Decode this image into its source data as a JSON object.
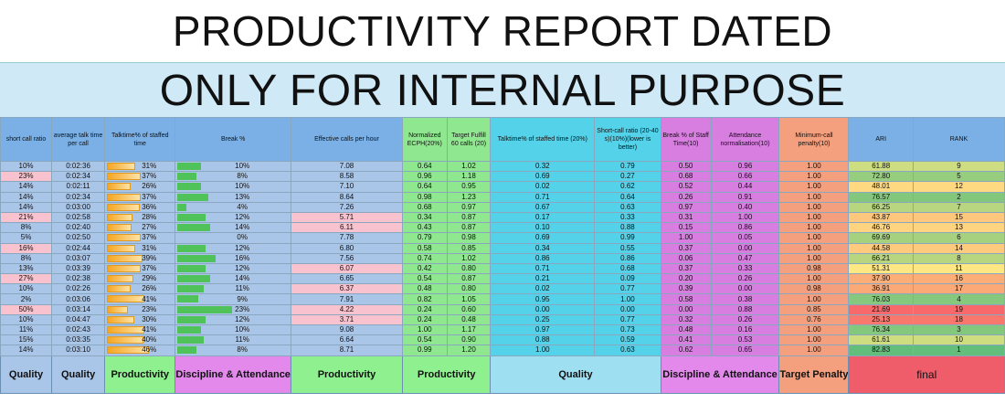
{
  "title_line1": "PRODUCTIVITY REPORT DATED",
  "title_line2": "ONLY FOR INTERNAL PURPOSE",
  "headers": [
    "short call ratio",
    "average talk time per call",
    "Talktime% of staffed time",
    "Break %",
    "Effective calls per hour",
    "Normalized ECPH(20%)",
    "Target Fulfill 60 calls (20)",
    "Talktime% of staffed time (20%)",
    "Short-call ratio (20-40 s)(10%)(lower is better)",
    "Break % of Staff Time(10)",
    "Attendance normalisation(10)",
    "Minimum-call penalty(10)",
    "ARI",
    "RANK"
  ],
  "rows": [
    {
      "short": "10%",
      "att": "0:02:36",
      "tt": "31%",
      "tt_v": 0.31,
      "brk": "10%",
      "brk_v": 0.1,
      "ecph": "7.08",
      "necph": "0.64",
      "tf": "1.02",
      "tn": "0.32",
      "sn": "0.79",
      "bn": "0.50",
      "an": "0.96",
      "mp": "1.00",
      "ari": "61.88",
      "rank": "9",
      "hl_short": false,
      "hl_ecph": false
    },
    {
      "short": "23%",
      "att": "0:02:34",
      "tt": "37%",
      "tt_v": 0.37,
      "brk": "8%",
      "brk_v": 0.08,
      "ecph": "8.58",
      "necph": "0.96",
      "tf": "1.18",
      "tn": "0.69",
      "sn": "0.27",
      "bn": "0.68",
      "an": "0.66",
      "mp": "1.00",
      "ari": "72.80",
      "rank": "5",
      "hl_short": true,
      "hl_ecph": false
    },
    {
      "short": "14%",
      "att": "0:02:11",
      "tt": "26%",
      "tt_v": 0.26,
      "brk": "10%",
      "brk_v": 0.1,
      "ecph": "7.10",
      "necph": "0.64",
      "tf": "0.95",
      "tn": "0.02",
      "sn": "0.62",
      "bn": "0.52",
      "an": "0.44",
      "mp": "1.00",
      "ari": "48.01",
      "rank": "12",
      "hl_short": false,
      "hl_ecph": false
    },
    {
      "short": "14%",
      "att": "0:02:34",
      "tt": "37%",
      "tt_v": 0.37,
      "brk": "13%",
      "brk_v": 0.13,
      "ecph": "8.64",
      "necph": "0.98",
      "tf": "1.23",
      "tn": "0.71",
      "sn": "0.64",
      "bn": "0.26",
      "an": "0.91",
      "mp": "1.00",
      "ari": "76.57",
      "rank": "2",
      "hl_short": false,
      "hl_ecph": false
    },
    {
      "short": "14%",
      "att": "0:03:00",
      "tt": "36%",
      "tt_v": 0.36,
      "brk": "4%",
      "brk_v": 0.04,
      "ecph": "7.26",
      "necph": "0.68",
      "tf": "0.97",
      "tn": "0.67",
      "sn": "0.63",
      "bn": "0.97",
      "an": "0.40",
      "mp": "1.00",
      "ari": "66.25",
      "rank": "7",
      "hl_short": false,
      "hl_ecph": false
    },
    {
      "short": "21%",
      "att": "0:02:58",
      "tt": "28%",
      "tt_v": 0.28,
      "brk": "12%",
      "brk_v": 0.12,
      "ecph": "5.71",
      "necph": "0.34",
      "tf": "0.87",
      "tn": "0.17",
      "sn": "0.33",
      "bn": "0.31",
      "an": "1.00",
      "mp": "1.00",
      "ari": "43.87",
      "rank": "15",
      "hl_short": true,
      "hl_ecph": true
    },
    {
      "short": "8%",
      "att": "0:02:40",
      "tt": "27%",
      "tt_v": 0.27,
      "brk": "14%",
      "brk_v": 0.14,
      "ecph": "6.11",
      "necph": "0.43",
      "tf": "0.87",
      "tn": "0.10",
      "sn": "0.88",
      "bn": "0.15",
      "an": "0.86",
      "mp": "1.00",
      "ari": "46.76",
      "rank": "13",
      "hl_short": false,
      "hl_ecph": true
    },
    {
      "short": "5%",
      "att": "0:02:50",
      "tt": "37%",
      "tt_v": 0.37,
      "brk": "0%",
      "brk_v": 0.0,
      "ecph": "7.78",
      "necph": "0.79",
      "tf": "0.98",
      "tn": "0.69",
      "sn": "0.99",
      "bn": "1.00",
      "an": "0.05",
      "mp": "1.00",
      "ari": "69.69",
      "rank": "6",
      "hl_short": false,
      "hl_ecph": false
    },
    {
      "short": "16%",
      "att": "0:02:44",
      "tt": "31%",
      "tt_v": 0.31,
      "brk": "12%",
      "brk_v": 0.12,
      "ecph": "6.80",
      "necph": "0.58",
      "tf": "0.85",
      "tn": "0.34",
      "sn": "0.55",
      "bn": "0.37",
      "an": "0.00",
      "mp": "1.00",
      "ari": "44.58",
      "rank": "14",
      "hl_short": true,
      "hl_ecph": false
    },
    {
      "short": "8%",
      "att": "0:03:07",
      "tt": "39%",
      "tt_v": 0.39,
      "brk": "16%",
      "brk_v": 0.16,
      "ecph": "7.56",
      "necph": "0.74",
      "tf": "1.02",
      "tn": "0.86",
      "sn": "0.86",
      "bn": "0.06",
      "an": "0.47",
      "mp": "1.00",
      "ari": "66.21",
      "rank": "8",
      "hl_short": false,
      "hl_ecph": false
    },
    {
      "short": "13%",
      "att": "0:03:39",
      "tt": "37%",
      "tt_v": 0.37,
      "brk": "12%",
      "brk_v": 0.12,
      "ecph": "6.07",
      "necph": "0.42",
      "tf": "0.80",
      "tn": "0.71",
      "sn": "0.68",
      "bn": "0.37",
      "an": "0.33",
      "mp": "0.98",
      "ari": "51.31",
      "rank": "11",
      "hl_short": false,
      "hl_ecph": true
    },
    {
      "short": "27%",
      "att": "0:02:38",
      "tt": "29%",
      "tt_v": 0.29,
      "brk": "14%",
      "brk_v": 0.14,
      "ecph": "6.65",
      "necph": "0.54",
      "tf": "0.87",
      "tn": "0.21",
      "sn": "0.09",
      "bn": "0.20",
      "an": "0.26",
      "mp": "1.00",
      "ari": "37.90",
      "rank": "16",
      "hl_short": true,
      "hl_ecph": false
    },
    {
      "short": "10%",
      "att": "0:02:26",
      "tt": "26%",
      "tt_v": 0.26,
      "brk": "11%",
      "brk_v": 0.11,
      "ecph": "6.37",
      "necph": "0.48",
      "tf": "0.80",
      "tn": "0.02",
      "sn": "0.77",
      "bn": "0.39",
      "an": "0.00",
      "mp": "0.98",
      "ari": "36.91",
      "rank": "17",
      "hl_short": false,
      "hl_ecph": true
    },
    {
      "short": "2%",
      "att": "0:03:06",
      "tt": "41%",
      "tt_v": 0.41,
      "brk": "9%",
      "brk_v": 0.09,
      "ecph": "7.91",
      "necph": "0.82",
      "tf": "1.05",
      "tn": "0.95",
      "sn": "1.00",
      "bn": "0.58",
      "an": "0.38",
      "mp": "1.00",
      "ari": "76.03",
      "rank": "4",
      "hl_short": false,
      "hl_ecph": false
    },
    {
      "short": "50%",
      "att": "0:03:14",
      "tt": "23%",
      "tt_v": 0.23,
      "brk": "23%",
      "brk_v": 0.23,
      "ecph": "4.22",
      "necph": "0.24",
      "tf": "0.60",
      "tn": "0.00",
      "sn": "0.00",
      "bn": "0.00",
      "an": "0.88",
      "mp": "0.85",
      "ari": "21.69",
      "rank": "19",
      "hl_short": true,
      "hl_ecph": true
    },
    {
      "short": "10%",
      "att": "0:04:47",
      "tt": "30%",
      "tt_v": 0.3,
      "brk": "12%",
      "brk_v": 0.12,
      "ecph": "3.71",
      "necph": "0.24",
      "tf": "0.48",
      "tn": "0.25",
      "sn": "0.77",
      "bn": "0.32",
      "an": "0.26",
      "mp": "0.76",
      "ari": "25.13",
      "rank": "18",
      "hl_short": false,
      "hl_ecph": true
    },
    {
      "short": "11%",
      "att": "0:02:43",
      "tt": "41%",
      "tt_v": 0.41,
      "brk": "10%",
      "brk_v": 0.1,
      "ecph": "9.08",
      "necph": "1.00",
      "tf": "1.17",
      "tn": "0.97",
      "sn": "0.73",
      "bn": "0.48",
      "an": "0.16",
      "mp": "1.00",
      "ari": "76.34",
      "rank": "3",
      "hl_short": false,
      "hl_ecph": false
    },
    {
      "short": "15%",
      "att": "0:03:35",
      "tt": "40%",
      "tt_v": 0.4,
      "brk": "11%",
      "brk_v": 0.11,
      "ecph": "6.64",
      "necph": "0.54",
      "tf": "0.90",
      "tn": "0.88",
      "sn": "0.59",
      "bn": "0.41",
      "an": "0.53",
      "mp": "1.00",
      "ari": "61.61",
      "rank": "10",
      "hl_short": false,
      "hl_ecph": false
    },
    {
      "short": "14%",
      "att": "0:03:10",
      "tt": "46%",
      "tt_v": 0.46,
      "brk": "8%",
      "brk_v": 0.08,
      "ecph": "8.71",
      "necph": "0.99",
      "tf": "1.20",
      "tn": "1.00",
      "sn": "0.63",
      "bn": "0.62",
      "an": "0.65",
      "mp": "1.00",
      "ari": "82.83",
      "rank": "1",
      "hl_short": false,
      "hl_ecph": false
    }
  ],
  "footer": [
    "Quality",
    "Quality",
    "Productivity",
    "Discipline & Attendance",
    "Productivity",
    "Productivity",
    "Quality",
    "Discipline & Attendance",
    "Target Penalty",
    "final"
  ],
  "colors": {
    "ari_low": "#f8696b",
    "ari_mid": "#ffeb84",
    "ari_high": "#63be7b"
  }
}
